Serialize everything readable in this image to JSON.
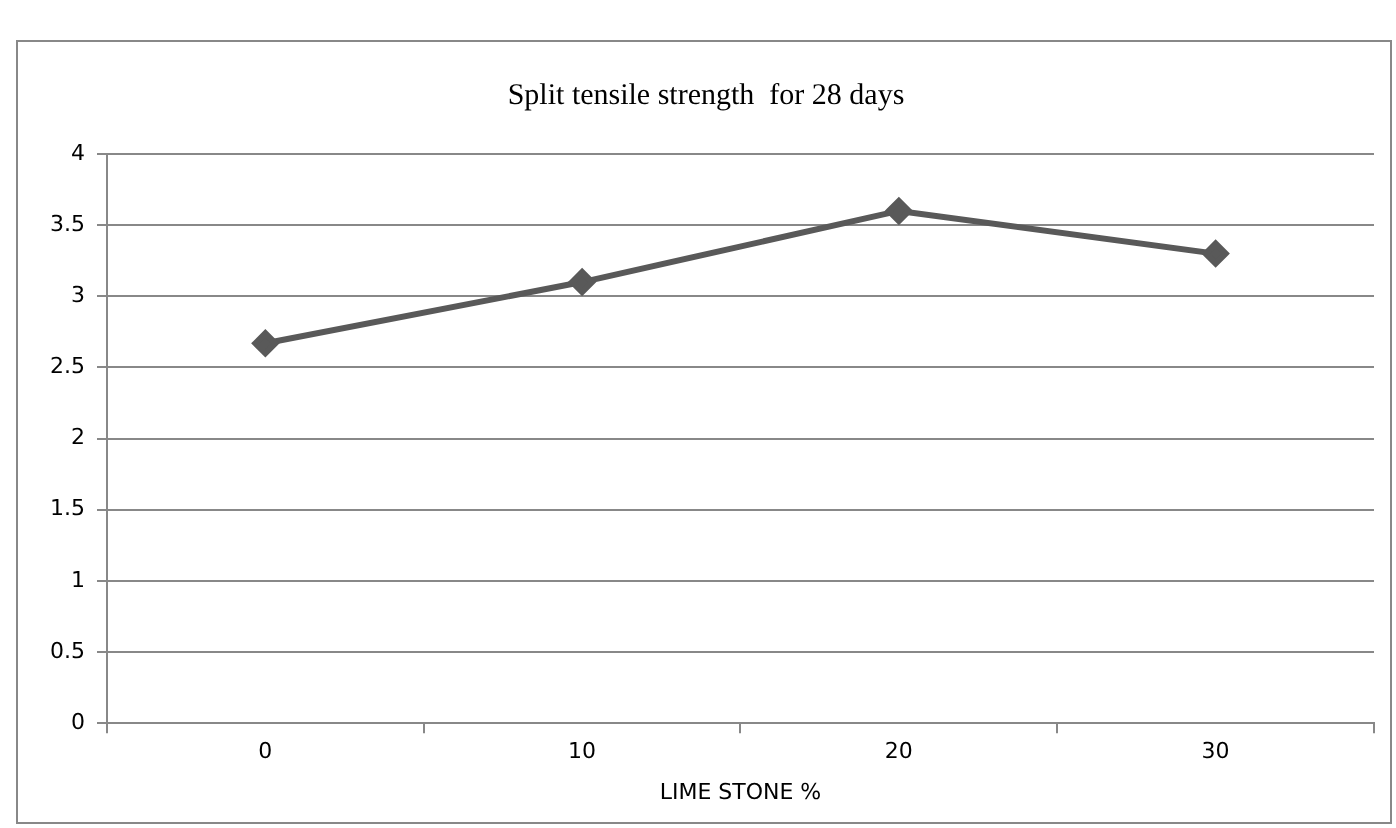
{
  "chart_data": {
    "type": "line",
    "title": "Split tensile strength  for 28 days",
    "xlabel": "LIME STONE %",
    "categories": [
      "0",
      "10",
      "20",
      "30"
    ],
    "series": [
      {
        "color": "#595959",
        "values": [
          2.67,
          3.1,
          3.6,
          3.3
        ]
      }
    ],
    "ylim": [
      0,
      4
    ],
    "yticks": [
      0,
      0.5,
      1,
      1.5,
      2,
      2.5,
      3,
      3.5,
      4
    ],
    "grid": "y",
    "legend": false,
    "marker": "diamond",
    "line_style": "solid"
  }
}
